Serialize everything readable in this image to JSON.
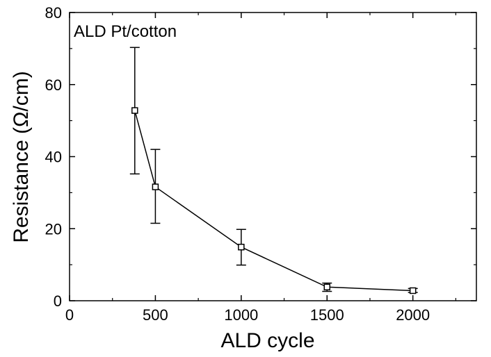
{
  "chart_data": {
    "type": "scatter",
    "title": "",
    "annotation": "ALD Pt/cotton",
    "xlabel": "ALD cycle",
    "ylabel": "Resistance (Ω/cm)",
    "xlim": [
      0,
      2370
    ],
    "ylim": [
      0,
      80
    ],
    "xticks": [
      0,
      500,
      1000,
      1500,
      2000
    ],
    "xtick_labels": [
      "0",
      "500",
      "1000",
      "1500",
      "2000"
    ],
    "yticks": [
      0,
      20,
      40,
      60,
      80
    ],
    "ytick_labels": [
      "0",
      "20",
      "40",
      "60",
      "80"
    ],
    "grid": false,
    "marker": "open-square",
    "connected": true,
    "series": [
      {
        "x": [
          380,
          500,
          1000,
          1500,
          2000
        ],
        "y": [
          52.8,
          31.6,
          14.9,
          3.8,
          2.8
        ],
        "error_low": [
          35.2,
          21.5,
          9.9,
          2.6,
          2.3
        ],
        "error_high": [
          70.3,
          42.0,
          19.8,
          4.9,
          3.4
        ]
      }
    ]
  }
}
